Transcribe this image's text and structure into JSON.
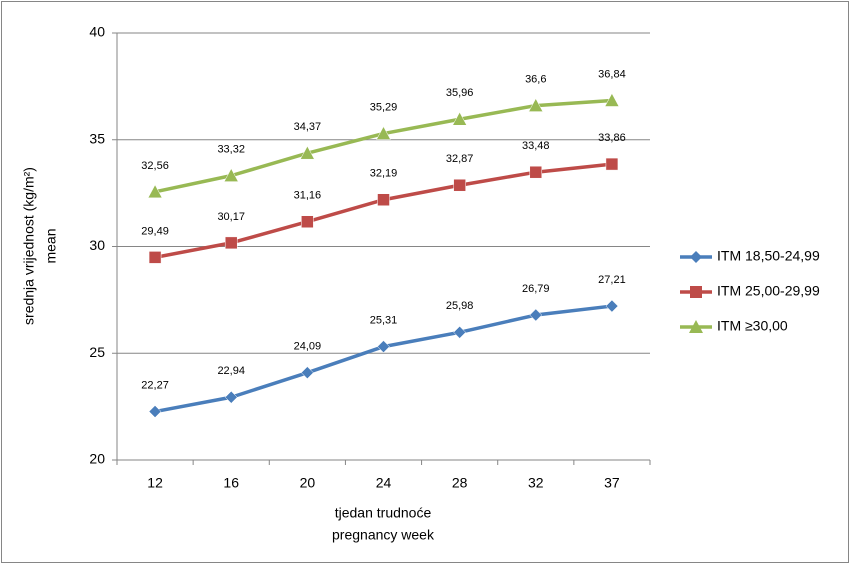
{
  "chart_data": {
    "type": "line",
    "y_label": [
      "srednja vrijednost (kg/m²)",
      "mean"
    ],
    "x_label": [
      "tjedan trudnoće",
      "pregnancy week"
    ],
    "categories": [
      "12",
      "16",
      "20",
      "24",
      "28",
      "32",
      "37"
    ],
    "series": [
      {
        "name": "ITM 18,50-24,99",
        "color": "#4a7ebb",
        "marker": "diamond",
        "values": [
          22.27,
          22.94,
          24.09,
          25.31,
          25.98,
          26.79,
          27.21
        ],
        "value_labels": [
          "22,27",
          "22,94",
          "24,09",
          "25,31",
          "25,98",
          "26,79",
          "27,21"
        ]
      },
      {
        "name": "ITM 25,00-29,99",
        "color": "#be4b48",
        "marker": "square",
        "values": [
          29.49,
          30.17,
          31.16,
          32.19,
          32.87,
          33.48,
          33.86
        ],
        "value_labels": [
          "29,49",
          "30,17",
          "31,16",
          "32,19",
          "32,87",
          "33,48",
          "33,86"
        ]
      },
      {
        "name": "ITM ≥30,00",
        "color": "#98b954",
        "marker": "triangle",
        "values": [
          32.56,
          33.32,
          34.37,
          35.29,
          35.96,
          36.6,
          36.84
        ],
        "value_labels": [
          "32,56",
          "33,32",
          "34,37",
          "35,29",
          "35,96",
          "36,6",
          "36,84"
        ]
      }
    ],
    "ylim": [
      20,
      40
    ],
    "yticks": [
      20,
      25,
      30,
      35,
      40
    ],
    "grid": true,
    "legend": "right"
  }
}
